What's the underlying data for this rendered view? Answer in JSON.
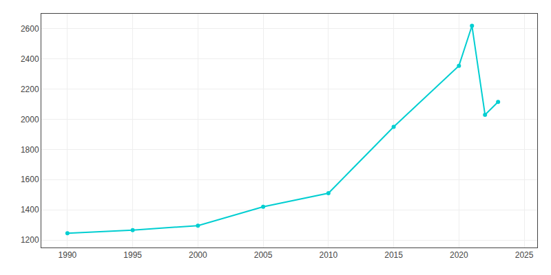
{
  "chart_data": {
    "type": "line",
    "x": [
      1990,
      1995,
      2000,
      2005,
      2010,
      2015,
      2020,
      2021,
      2022,
      2023
    ],
    "values": [
      1245,
      1265,
      1295,
      1420,
      1510,
      1950,
      2355,
      2620,
      2030,
      2115
    ],
    "color": "#00CED1",
    "marker": "circle",
    "line_style": "solid",
    "xlim": [
      1988,
      2026
    ],
    "ylim": [
      1150,
      2700
    ],
    "xticks": [
      1990,
      1995,
      2000,
      2005,
      2010,
      2015,
      2020,
      2025
    ],
    "yticks": [
      1200,
      1400,
      1600,
      1800,
      2000,
      2200,
      2400,
      2600
    ],
    "grid": true
  }
}
